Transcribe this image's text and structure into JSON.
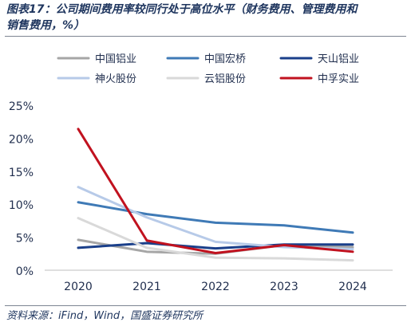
{
  "title_line1": "图表17：公司期间费用率较同行处于高位水平（财务费用、管理费用和",
  "title_line2": "销售费用，%）",
  "source": "资料来源：iFind，Wind，国盛证券研究所",
  "colors": {
    "中国铝业": "#a6a6a6",
    "中国宏桥": "#3f7ab6",
    "天山铝业": "#1a3f8a",
    "神火股份": "#b7cae8",
    "云铝股份": "#d9d9d9",
    "中孚实业": "#c1121f"
  },
  "chart_data": {
    "type": "line",
    "x": [
      0,
      1,
      2,
      3,
      4
    ],
    "x_tick_labels": [
      "2020",
      "2021",
      "2022",
      "2023",
      "2024"
    ],
    "y_tick_labels": [
      "0%",
      "5%",
      "10%",
      "15%",
      "20%",
      "25%"
    ],
    "ylim": [
      0,
      25
    ],
    "grid": false,
    "legend_position": "top",
    "legend_columns": 3,
    "series": [
      {
        "name": "中国铝业",
        "values": [
          4.6,
          2.8,
          2.5,
          3.8,
          3.5
        ]
      },
      {
        "name": "中国宏桥",
        "values": [
          10.3,
          8.5,
          7.2,
          6.8,
          5.7
        ]
      },
      {
        "name": "天山铝业",
        "values": [
          3.4,
          4.1,
          3.3,
          3.9,
          3.9
        ]
      },
      {
        "name": "神火股份",
        "values": [
          12.6,
          8.0,
          4.3,
          3.5,
          3.2
        ]
      },
      {
        "name": "云铝股份",
        "values": [
          7.9,
          3.4,
          1.9,
          1.8,
          1.5
        ]
      },
      {
        "name": "中孚实业",
        "values": [
          21.4,
          4.5,
          2.6,
          3.8,
          2.8
        ]
      }
    ]
  }
}
